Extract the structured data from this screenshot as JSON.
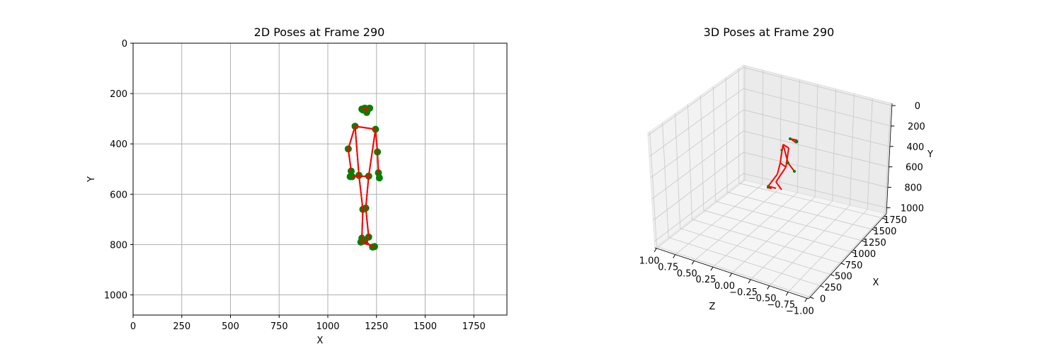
{
  "chart_data": [
    {
      "type": "scatter",
      "title": "2D Poses at Frame 290",
      "xlabel": "X",
      "ylabel": "Y",
      "xlim": [
        0,
        1920
      ],
      "ylim": [
        1080,
        0
      ],
      "y_inverted": true,
      "grid": true,
      "xticks": [
        "0",
        "250",
        "500",
        "750",
        "1000",
        "1250",
        "1500",
        "1750"
      ],
      "yticks": [
        "0",
        "200",
        "400",
        "600",
        "800",
        "1000"
      ],
      "points": [
        [
          1190,
          258
        ],
        [
          1175,
          262
        ],
        [
          1210,
          260
        ],
        [
          1200,
          275
        ],
        [
          1180,
          265
        ],
        [
          1215,
          258
        ],
        [
          1140,
          330
        ],
        [
          1245,
          342
        ],
        [
          1105,
          420
        ],
        [
          1255,
          432
        ],
        [
          1120,
          508
        ],
        [
          1260,
          515
        ],
        [
          1115,
          530
        ],
        [
          1125,
          530
        ],
        [
          1160,
          525
        ],
        [
          1210,
          528
        ],
        [
          1265,
          535
        ],
        [
          1180,
          660
        ],
        [
          1195,
          655
        ],
        [
          1175,
          775
        ],
        [
          1210,
          770
        ],
        [
          1170,
          790
        ],
        [
          1190,
          785
        ],
        [
          1240,
          808
        ],
        [
          1230,
          810
        ]
      ],
      "bones": [
        [
          1140,
          330,
          1245,
          342
        ],
        [
          1140,
          330,
          1105,
          420
        ],
        [
          1105,
          420,
          1120,
          508
        ],
        [
          1245,
          342,
          1255,
          432
        ],
        [
          1255,
          432,
          1260,
          515
        ],
        [
          1140,
          330,
          1160,
          525
        ],
        [
          1245,
          342,
          1210,
          528
        ],
        [
          1120,
          530,
          1210,
          528
        ],
        [
          1160,
          525,
          1180,
          660
        ],
        [
          1210,
          528,
          1195,
          655
        ],
        [
          1180,
          660,
          1175,
          775
        ],
        [
          1195,
          655,
          1210,
          770
        ],
        [
          1175,
          775,
          1170,
          790
        ],
        [
          1210,
          770,
          1190,
          785
        ],
        [
          1170,
          790,
          1240,
          808
        ],
        [
          1190,
          785,
          1230,
          810
        ],
        [
          1175,
          262,
          1210,
          260
        ],
        [
          1190,
          258,
          1200,
          275
        ]
      ]
    },
    {
      "type": "scatter",
      "title": "3D Poses at Frame 290",
      "xlabel": "X",
      "ylabel": "Y",
      "zlabel": "Z",
      "xticks": [
        "0",
        "250",
        "500",
        "750",
        "1000",
        "1250",
        "1500",
        "1750"
      ],
      "yticks": [
        "0",
        "200",
        "400",
        "600",
        "800",
        "1000"
      ],
      "zticks": [
        "1.00",
        "0.75",
        "0.50",
        "0.25",
        "0.00",
        "−0.25",
        "−0.50",
        "−0.75",
        "−1.00"
      ],
      "grid": true
    }
  ]
}
